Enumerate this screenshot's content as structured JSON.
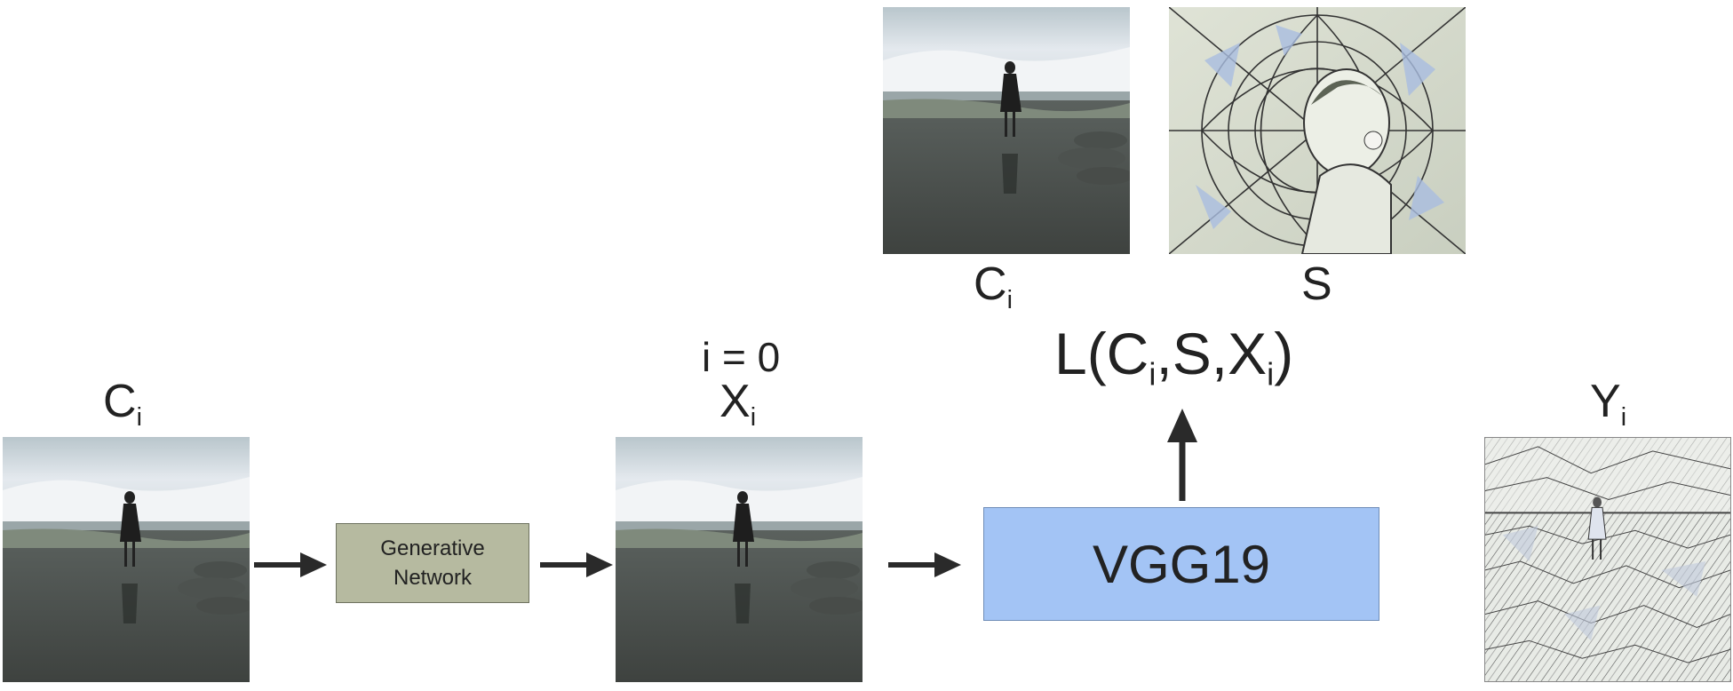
{
  "labels": {
    "content_input": "C",
    "content_input_sub": "i",
    "content_top": "C",
    "content_top_sub": "i",
    "style_top": "S",
    "iteration": "i = 0",
    "generated": "X",
    "generated_sub": "i",
    "output": "Y",
    "output_sub": "i",
    "loss_prefix": "L(C",
    "loss_sub1": "i",
    "loss_mid": ",S,X",
    "loss_sub2": "i",
    "loss_suffix": ")"
  },
  "boxes": {
    "generative_line1": "Generative",
    "generative_line2": "Network",
    "vgg": "VGG19"
  },
  "colors": {
    "generative_fill": "#b6baa0",
    "vgg_fill": "#a3c4f5",
    "arrow": "#2a2a2a"
  }
}
